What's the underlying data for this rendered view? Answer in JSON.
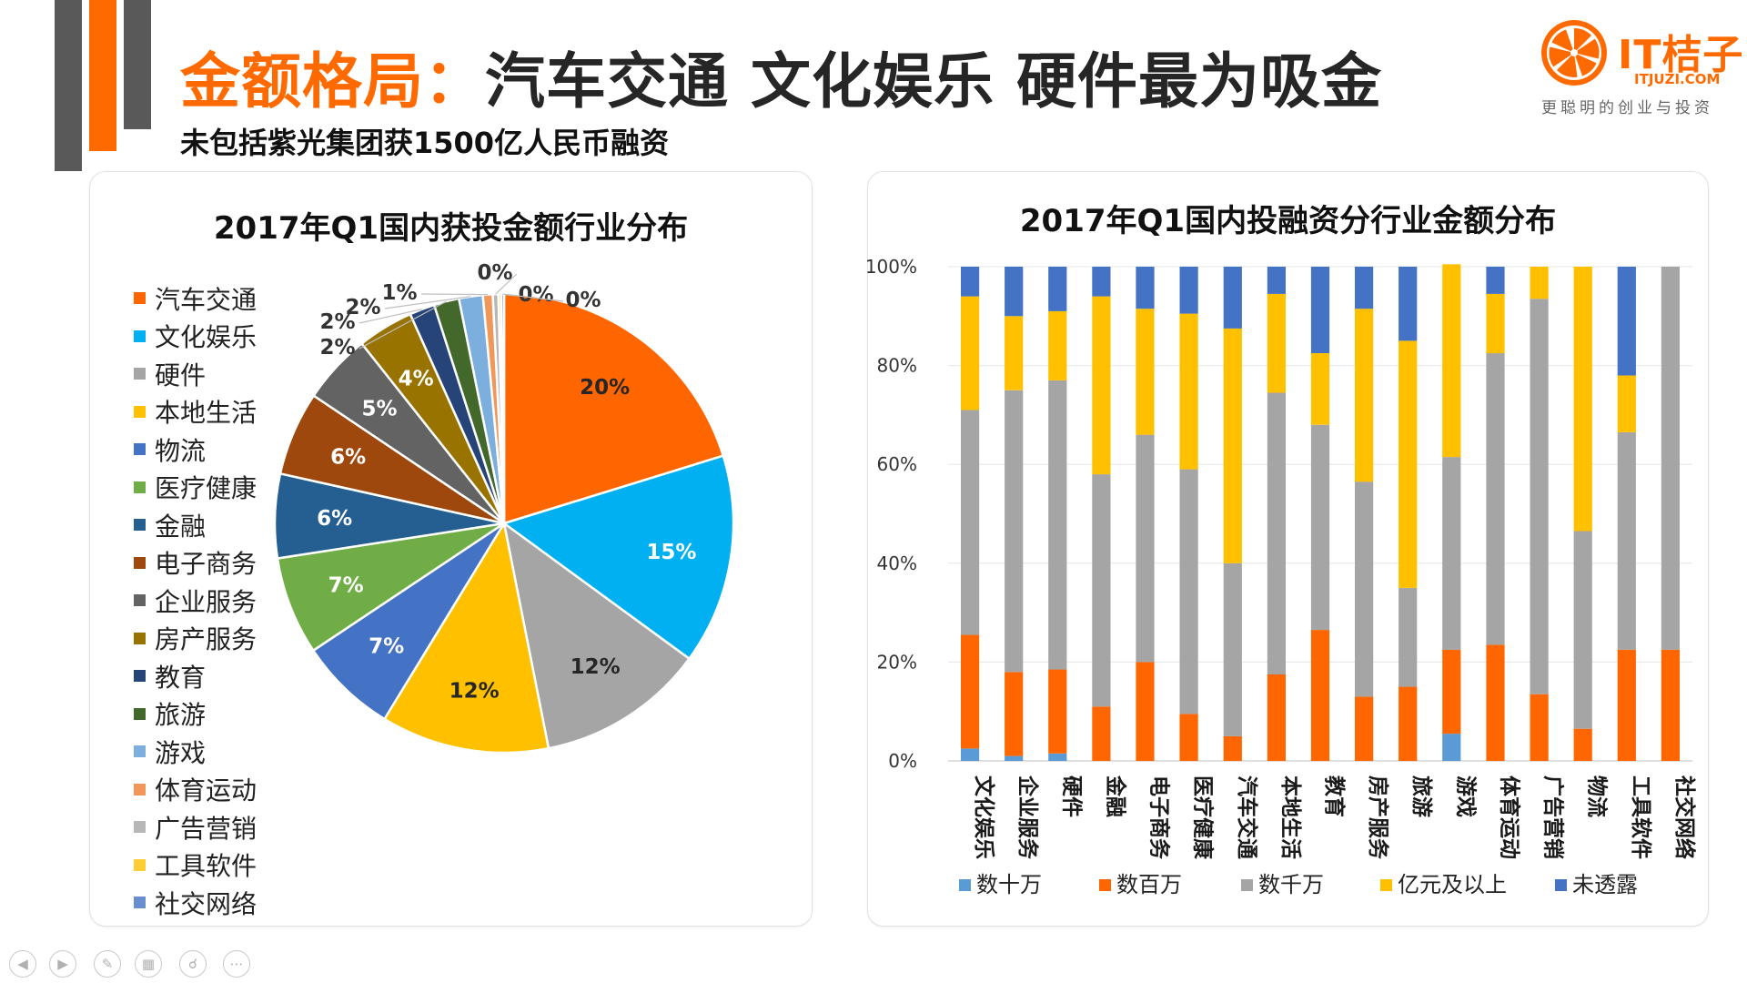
{
  "title": {
    "highlight": "金额格局：",
    "rest": "汽车交通 文化娱乐 硬件最为吸金"
  },
  "subtitle": "未包括紫光集团获1500亿人民币融资",
  "logo": {
    "name": "IT桔子",
    "url": "ITJUZI.COM",
    "slogan": "更聪明的创业与投资"
  },
  "colors": {
    "accent": "#ff6a00",
    "dark_bar": "#595959"
  },
  "pie_chart": {
    "title": "2017年Q1国内获投金额行业分布",
    "legend": [
      {
        "label": "汽车交通",
        "color": "#ff6600"
      },
      {
        "label": "文化娱乐",
        "color": "#00b0f0"
      },
      {
        "label": "硬件",
        "color": "#a5a5a5"
      },
      {
        "label": "本地生活",
        "color": "#ffc000"
      },
      {
        "label": "物流",
        "color": "#4472c4"
      },
      {
        "label": "医疗健康",
        "color": "#70ad47"
      },
      {
        "label": "金融",
        "color": "#255e91"
      },
      {
        "label": "电子商务",
        "color": "#9e480e"
      },
      {
        "label": "企业服务",
        "color": "#636363"
      },
      {
        "label": "房产服务",
        "color": "#997300"
      },
      {
        "label": "教育",
        "color": "#264478"
      },
      {
        "label": "旅游",
        "color": "#43682b"
      },
      {
        "label": "游戏",
        "color": "#7cafdd"
      },
      {
        "label": "体育运动",
        "color": "#f1975a"
      },
      {
        "label": "广告营销",
        "color": "#b7b7b7"
      },
      {
        "label": "工具软件",
        "color": "#ffcd33"
      },
      {
        "label": "社交网络",
        "color": "#698ed0"
      }
    ]
  },
  "chart_data": [
    {
      "type": "pie",
      "title": "2017年Q1国内获投金额行业分布",
      "categories": [
        "汽车交通",
        "文化娱乐",
        "硬件",
        "本地生活",
        "物流",
        "医疗健康",
        "金融",
        "电子商务",
        "企业服务",
        "房产服务",
        "教育",
        "旅游",
        "游戏",
        "体育运动",
        "广告营销",
        "工具软件",
        "社交网络"
      ],
      "values": [
        20.5,
        15,
        12,
        12,
        7,
        7,
        6,
        6,
        5,
        4,
        1.8,
        1.8,
        1.7,
        0.7,
        0.4,
        0.2,
        0.2
      ],
      "labels": [
        "20%",
        "15%",
        "12%",
        "12%",
        "7%",
        "7%",
        "6%",
        "6%",
        "5%",
        "4%",
        "2%",
        "2%",
        "2%",
        "1%",
        "0%",
        "0%",
        "0%"
      ],
      "legend": "left"
    },
    {
      "type": "bar",
      "stacked": true,
      "title": "2017年Q1国内投融资分行业金额分布",
      "categories": [
        "文化娱乐",
        "企业服务",
        "硬件",
        "金融",
        "电子商务",
        "医疗健康",
        "汽车交通",
        "本地生活",
        "教育",
        "房产服务",
        "旅游",
        "游戏",
        "体育运动",
        "广告营销",
        "物流",
        "工具软件",
        "社交网络"
      ],
      "series": [
        {
          "name": "数十万",
          "color": "#5b9bd5",
          "values": [
            2.5,
            1,
            1.5,
            0,
            0,
            0,
            0,
            0,
            0,
            0,
            0,
            5.5,
            0,
            0,
            0,
            0,
            0
          ]
        },
        {
          "name": "数百万",
          "color": "#ff6600",
          "values": [
            23,
            17,
            17,
            11,
            20,
            9.5,
            5,
            17.5,
            26.5,
            13,
            15,
            17,
            23.5,
            13.5,
            6.5,
            22.5,
            22.5
          ]
        },
        {
          "name": "数千万",
          "color": "#a5a5a5",
          "values": [
            45.5,
            57,
            58.5,
            47,
            46,
            49.5,
            35,
            57,
            41.5,
            43.5,
            20,
            39,
            59,
            80,
            40,
            44,
            77.5
          ]
        },
        {
          "name": "亿元及以上",
          "color": "#ffc000",
          "values": [
            23,
            15,
            14,
            36,
            25.5,
            31.5,
            47.5,
            20,
            14.5,
            35,
            50,
            39,
            12,
            6.5,
            53.5,
            11.5,
            0
          ]
        },
        {
          "name": "未透露",
          "color": "#4472c4",
          "values": [
            6,
            10,
            9,
            6,
            8.5,
            9.5,
            12.5,
            5.5,
            17.5,
            8.5,
            15,
            0,
            5.5,
            0,
            0,
            22,
            0
          ]
        }
      ],
      "yticks": [
        "0%",
        "20%",
        "40%",
        "60%",
        "80%",
        "100%"
      ],
      "ylim": [
        0,
        100
      ],
      "legend": "bottom"
    }
  ]
}
